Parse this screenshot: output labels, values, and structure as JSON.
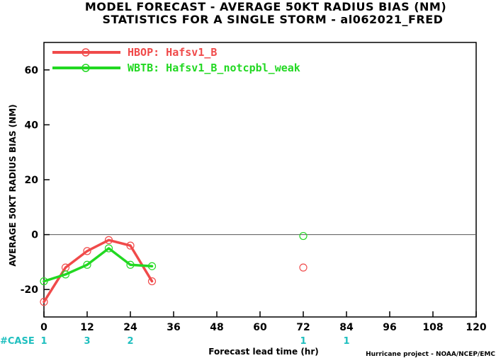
{
  "chart_data": {
    "type": "line",
    "title": "MODEL FORECAST - AVERAGE 50KT RADIUS BIAS (NM)",
    "subtitle": "STATISTICS FOR A SINGLE STORM - al062021_FRED",
    "xlabel": "Forecast lead time (hr)",
    "ylabel": "AVERAGE 50KT RADIUS BIAS (NM)",
    "xlim": [
      0,
      120
    ],
    "ylim": [
      -30,
      70
    ],
    "x_ticks": [
      0,
      12,
      24,
      36,
      48,
      60,
      72,
      84,
      96,
      108,
      120
    ],
    "y_ticks": [
      -20,
      0,
      20,
      40,
      60
    ],
    "zero_line": 0,
    "legend_position": "top-left",
    "series": [
      {
        "name": "HBOP: Hafsv1_B",
        "color": "#f04a4a",
        "points": [
          {
            "x": 0,
            "y": -24.5
          },
          {
            "x": 6,
            "y": -12
          },
          {
            "x": 12,
            "y": -6
          },
          {
            "x": 18,
            "y": -2
          },
          {
            "x": 24,
            "y": -4
          },
          {
            "x": 30,
            "y": -17
          }
        ],
        "isolated_points": [
          {
            "x": 72,
            "y": -12
          }
        ]
      },
      {
        "name": "WBTB: Hafsv1_B_notcpbl_weak",
        "color": "#22d822",
        "points": [
          {
            "x": 0,
            "y": -17
          },
          {
            "x": 6,
            "y": -14.5
          },
          {
            "x": 12,
            "y": -11
          },
          {
            "x": 18,
            "y": -5
          },
          {
            "x": 24,
            "y": -11
          },
          {
            "x": 30,
            "y": -11.5
          }
        ],
        "isolated_points": [
          {
            "x": 72,
            "y": -0.5
          }
        ]
      }
    ],
    "case_label": "#CASE",
    "case_counts": [
      {
        "x": 0,
        "value": "1"
      },
      {
        "x": 12,
        "value": "3"
      },
      {
        "x": 24,
        "value": "2"
      },
      {
        "x": 72,
        "value": "1"
      },
      {
        "x": 84,
        "value": "1"
      }
    ],
    "credit": "Hurricane project - NOAA/NCEP/EMC"
  }
}
